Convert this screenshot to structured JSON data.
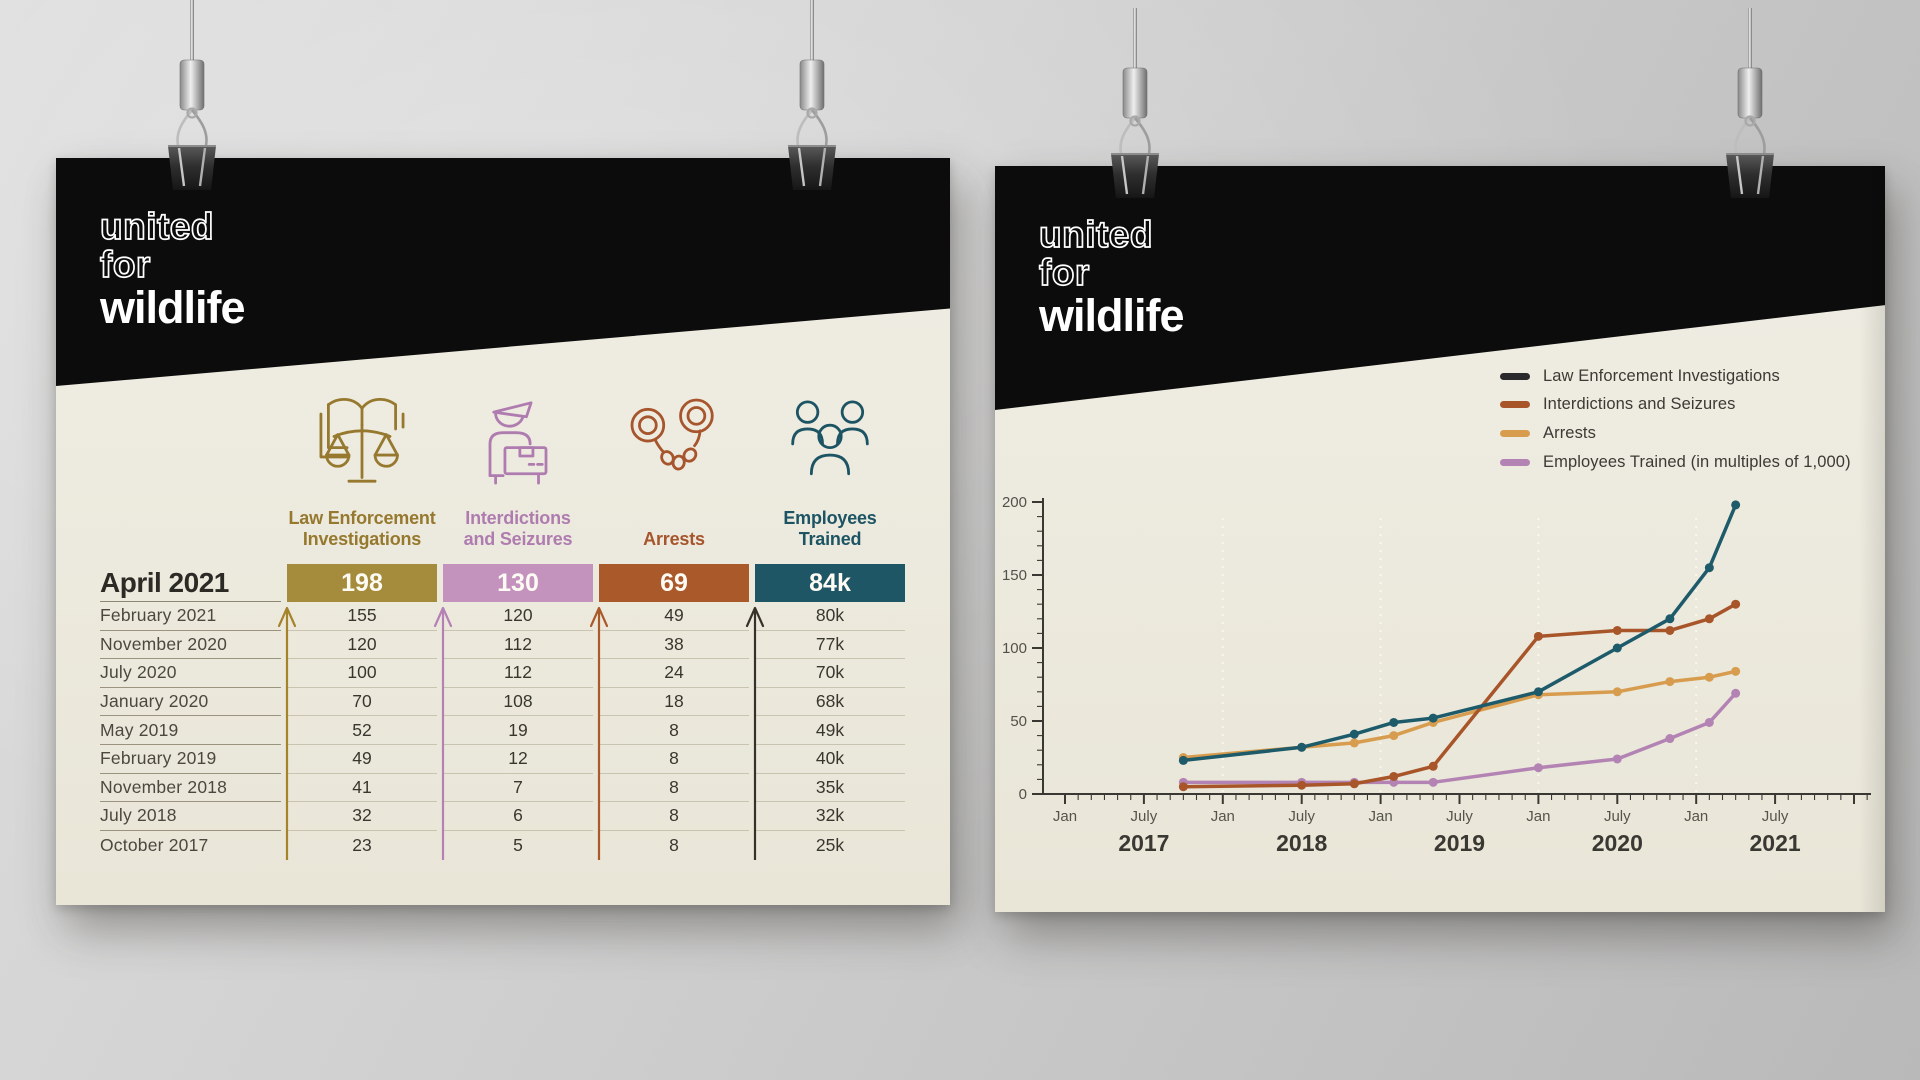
{
  "left_poster": {
    "logo": {
      "line1": "united",
      "line2": "for",
      "line3": "wildlife"
    },
    "columns": [
      {
        "label": "Law Enforcement\nInvestigations",
        "icon": "law-book-scales-icon",
        "text_color": "#96792f",
        "cell_color": "#a58c3c",
        "arrow_color": "#a5832b"
      },
      {
        "label": "Interdictions\nand Seizures",
        "icon": "customs-officer-icon",
        "text_color": "#af7cb0",
        "cell_color": "#c392bd",
        "arrow_color": "#b580b5"
      },
      {
        "label": "Arrests",
        "icon": "handcuffs-icon",
        "text_color": "#a6552c",
        "cell_color": "#aa592b",
        "arrow_color": "#aa592b"
      },
      {
        "label": "Employees\nTrained",
        "icon": "people-group-icon",
        "text_color": "#1d5464",
        "cell_color": "#1e5665",
        "arrow_color": "#37312a"
      }
    ]
  },
  "right_poster": {
    "logo": {
      "line1": "united",
      "line2": "for",
      "line3": "wildlife"
    },
    "legend": [
      {
        "label": "Law Enforcement Investigations",
        "swatch_color": "#2a2a2c"
      },
      {
        "label": "Interdictions and Seizures",
        "swatch_color": "#a8552a"
      },
      {
        "label": "Arrests",
        "swatch_color": "#d89c4e"
      },
      {
        "label": "Employees Trained (in multiples of 1,000)",
        "swatch_color": "#b283b3"
      }
    ]
  },
  "chart_data": [
    {
      "type": "table",
      "columns": [
        "Law Enforcement Investigations",
        "Interdictions and Seizures",
        "Arrests",
        "Employees Trained"
      ],
      "current_period": "April 2021",
      "current_values": [
        "198",
        "130",
        "69",
        "84k"
      ],
      "rows": [
        {
          "date": "February 2021",
          "values": [
            "155",
            "120",
            "49",
            "80k"
          ]
        },
        {
          "date": "November 2020",
          "values": [
            "120",
            "112",
            "38",
            "77k"
          ]
        },
        {
          "date": "July 2020",
          "values": [
            "100",
            "112",
            "24",
            "70k"
          ]
        },
        {
          "date": "January 2020",
          "values": [
            "70",
            "108",
            "18",
            "68k"
          ]
        },
        {
          "date": "May 2019",
          "values": [
            "52",
            "19",
            "8",
            "49k"
          ]
        },
        {
          "date": "February 2019",
          "values": [
            "49",
            "12",
            "8",
            "40k"
          ]
        },
        {
          "date": "November 2018",
          "values": [
            "41",
            "7",
            "8",
            "35k"
          ]
        },
        {
          "date": "July 2018",
          "values": [
            "32",
            "6",
            "8",
            "32k"
          ]
        },
        {
          "date": "October 2017",
          "values": [
            "23",
            "5",
            "8",
            "25k"
          ]
        }
      ]
    },
    {
      "type": "line",
      "x_point_labels": [
        "Oct 2017",
        "Jul 2018",
        "Nov 2018",
        "Feb 2019",
        "May 2019",
        "Jan 2020",
        "Jul 2020",
        "Nov 2020",
        "Feb 2021",
        "Apr 2021"
      ],
      "x_months_since_jan_2017": [
        9,
        18,
        22,
        25,
        28,
        36,
        42,
        46,
        49,
        51
      ],
      "series": [
        {
          "name": "Law Enforcement Investigations",
          "color": "#1d5a6a",
          "values": [
            23,
            32,
            41,
            49,
            52,
            70,
            100,
            120,
            155,
            198
          ]
        },
        {
          "name": "Interdictions and Seizures",
          "color": "#a8552a",
          "values": [
            5,
            6,
            7,
            12,
            19,
            108,
            112,
            112,
            120,
            130
          ]
        },
        {
          "name": "Employees Trained (in multiples of 1,000)",
          "color": "#d89c4e",
          "values": [
            25,
            32,
            35,
            40,
            49,
            68,
            70,
            77,
            80,
            84
          ]
        },
        {
          "name": "Arrests",
          "color": "#b283b3",
          "values": [
            8,
            8,
            8,
            8,
            8,
            18,
            24,
            38,
            49,
            69
          ]
        }
      ],
      "ylim": [
        0,
        200
      ],
      "y_ticks": [
        0,
        50,
        100,
        150,
        200
      ],
      "x_axis": {
        "month_tick_labels": [
          "Jan",
          "July"
        ],
        "year_labels": [
          "2017",
          "2018",
          "2019",
          "2020",
          "2021"
        ],
        "minor_ticks": "monthly"
      },
      "gridline_months": [
        12,
        24,
        36,
        48
      ],
      "grid": "dashed vertical lines at each January",
      "legend_position": "top-right"
    }
  ]
}
